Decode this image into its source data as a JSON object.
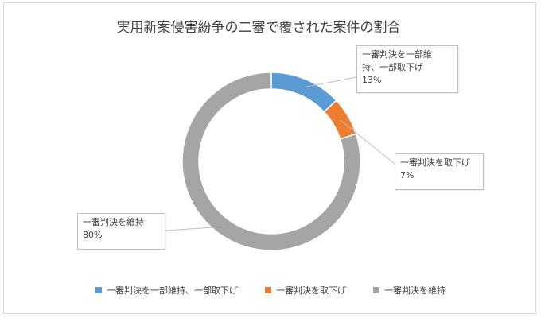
{
  "chart_data": {
    "type": "pie",
    "variant": "doughnut",
    "title": "実用新案侵害紛争の二審で覆された案件の割合",
    "categories": [
      "一審判決を一部維持、一部取下げ",
      "一審判決を取下げ",
      "一審判決を維持"
    ],
    "values": [
      13,
      7,
      80
    ],
    "colors": [
      "#5b9bd5",
      "#ed7d31",
      "#a5a5a5"
    ],
    "data_labels": [
      {
        "name": "一審判決を一部維\n持、一部取下げ",
        "value": "13%"
      },
      {
        "name": "一審判決を取下げ",
        "value": "7%"
      },
      {
        "name": "一審判決を維持",
        "value": "80%"
      }
    ],
    "legend_position": "bottom"
  }
}
